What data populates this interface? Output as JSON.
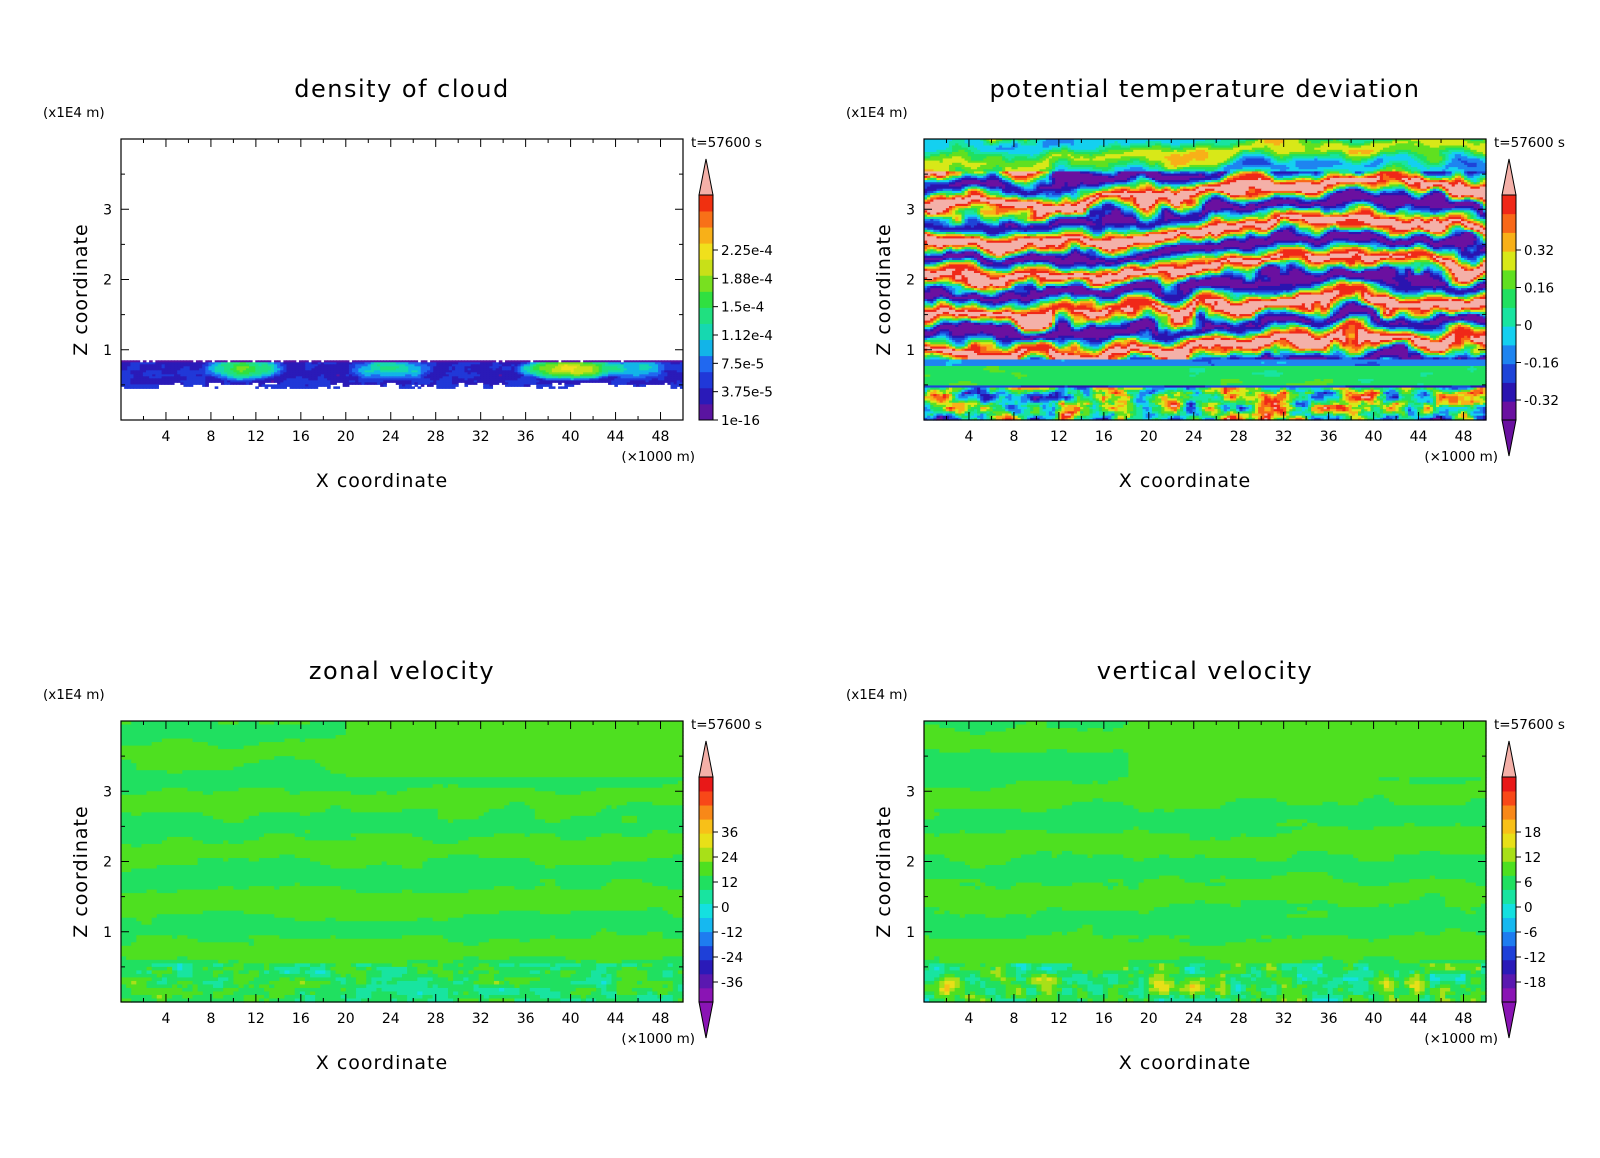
{
  "chart_data": [
    {
      "type": "heatmap",
      "title": "density of cloud",
      "xlabel": "X coordinate",
      "ylabel": "Z coordinate",
      "x_unit": "(×1000 m)",
      "y_unit": "(x1E4 m)",
      "time_label": "t=57600 s",
      "xlim": [
        0,
        50
      ],
      "ylim": [
        0,
        4
      ],
      "xticks": [
        "4",
        "8",
        "12",
        "16",
        "20",
        "24",
        "28",
        "32",
        "36",
        "40",
        "44",
        "48"
      ],
      "yticks": [
        "1",
        "2",
        "3"
      ],
      "colorbar": {
        "labels": [
          "2.25e-4",
          "1.88e-4",
          "1.5e-4",
          "1.12e-4",
          "7.5e-5",
          "3.75e-5",
          "1e-16"
        ],
        "label_values": [
          0.000225,
          0.0001875,
          0.00015,
          0.0001125,
          7.5e-05,
          3.75e-05,
          1e-16
        ],
        "arrow_top": true,
        "arrow_bottom": false
      },
      "field": "cloud_layer",
      "cloud_layer_z": [
        0.45,
        0.85
      ]
    },
    {
      "type": "heatmap",
      "title": "potential temperature deviation",
      "xlabel": "X coordinate",
      "ylabel": "Z coordinate",
      "x_unit": "(×1000 m)",
      "y_unit": "(x1E4 m)",
      "time_label": "t=57600 s",
      "xlim": [
        0,
        50
      ],
      "ylim": [
        0,
        4
      ],
      "xticks": [
        "4",
        "8",
        "12",
        "16",
        "20",
        "24",
        "28",
        "32",
        "36",
        "40",
        "44",
        "48"
      ],
      "yticks": [
        "1",
        "2",
        "3"
      ],
      "colorbar": {
        "labels": [
          "0.32",
          "0.16",
          "0",
          "-0.16",
          "-0.32"
        ],
        "label_values": [
          0.32,
          0.16,
          0,
          -0.16,
          -0.32
        ],
        "arrow_top": true,
        "arrow_bottom": true
      },
      "field": "theta_bands"
    },
    {
      "type": "heatmap",
      "title": "zonal velocity",
      "xlabel": "X coordinate",
      "ylabel": "Z coordinate",
      "x_unit": "(×1000 m)",
      "y_unit": "(x1E4 m)",
      "time_label": "t=57600 s",
      "xlim": [
        0,
        50
      ],
      "ylim": [
        0,
        4
      ],
      "xticks": [
        "4",
        "8",
        "12",
        "16",
        "20",
        "24",
        "28",
        "32",
        "36",
        "40",
        "44",
        "48"
      ],
      "yticks": [
        "1",
        "2",
        "3"
      ],
      "colorbar": {
        "labels": [
          "36",
          "24",
          "12",
          "0",
          "-12",
          "-24",
          "-36"
        ],
        "label_values": [
          36,
          24,
          12,
          0,
          -12,
          -24,
          -36
        ],
        "arrow_top": true,
        "arrow_bottom": true
      },
      "field": "zonal"
    },
    {
      "type": "heatmap",
      "title": "vertical velocity",
      "xlabel": "X coordinate",
      "ylabel": "Z coordinate",
      "x_unit": "(×1000 m)",
      "y_unit": "(x1E4 m)",
      "time_label": "t=57600 s",
      "xlim": [
        0,
        50
      ],
      "ylim": [
        0,
        4
      ],
      "xticks": [
        "4",
        "8",
        "12",
        "16",
        "20",
        "24",
        "28",
        "32",
        "36",
        "40",
        "44",
        "48"
      ],
      "yticks": [
        "1",
        "2",
        "3"
      ],
      "colorbar": {
        "labels": [
          "18",
          "12",
          "6",
          "0",
          "-6",
          "-12",
          "-18"
        ],
        "label_values": [
          18,
          12,
          6,
          0,
          -6,
          -12,
          -18
        ],
        "arrow_top": true,
        "arrow_bottom": true
      },
      "field": "vertical"
    }
  ],
  "palette": {
    "cloud_scale": [
      "#5a14a0",
      "#2a1ab8",
      "#2038d8",
      "#2068f0",
      "#12b4e8",
      "#16d8b0",
      "#20e080",
      "#30e040",
      "#78e020",
      "#c8e018",
      "#f0e01c",
      "#f8b018",
      "#f87018",
      "#f03010",
      "#f4b0a8"
    ],
    "theta_scale": [
      "#6a10a0",
      "#2a14b0",
      "#1e44d8",
      "#1e84f0",
      "#14d0f0",
      "#18e4a0",
      "#20e060",
      "#60e020",
      "#d8e818",
      "#f8b018",
      "#f86818",
      "#f02818",
      "#f4b0a8"
    ],
    "velocity_scale": [
      "#8a14b4",
      "#5a18b0",
      "#2a1ab8",
      "#1e40d8",
      "#1e7cf0",
      "#16b8f0",
      "#14e0e0",
      "#18e4a0",
      "#20e060",
      "#4ee020",
      "#a8e018",
      "#e8e018",
      "#f8c018",
      "#f88818",
      "#f84818",
      "#e81818",
      "#f4b0a8"
    ]
  }
}
